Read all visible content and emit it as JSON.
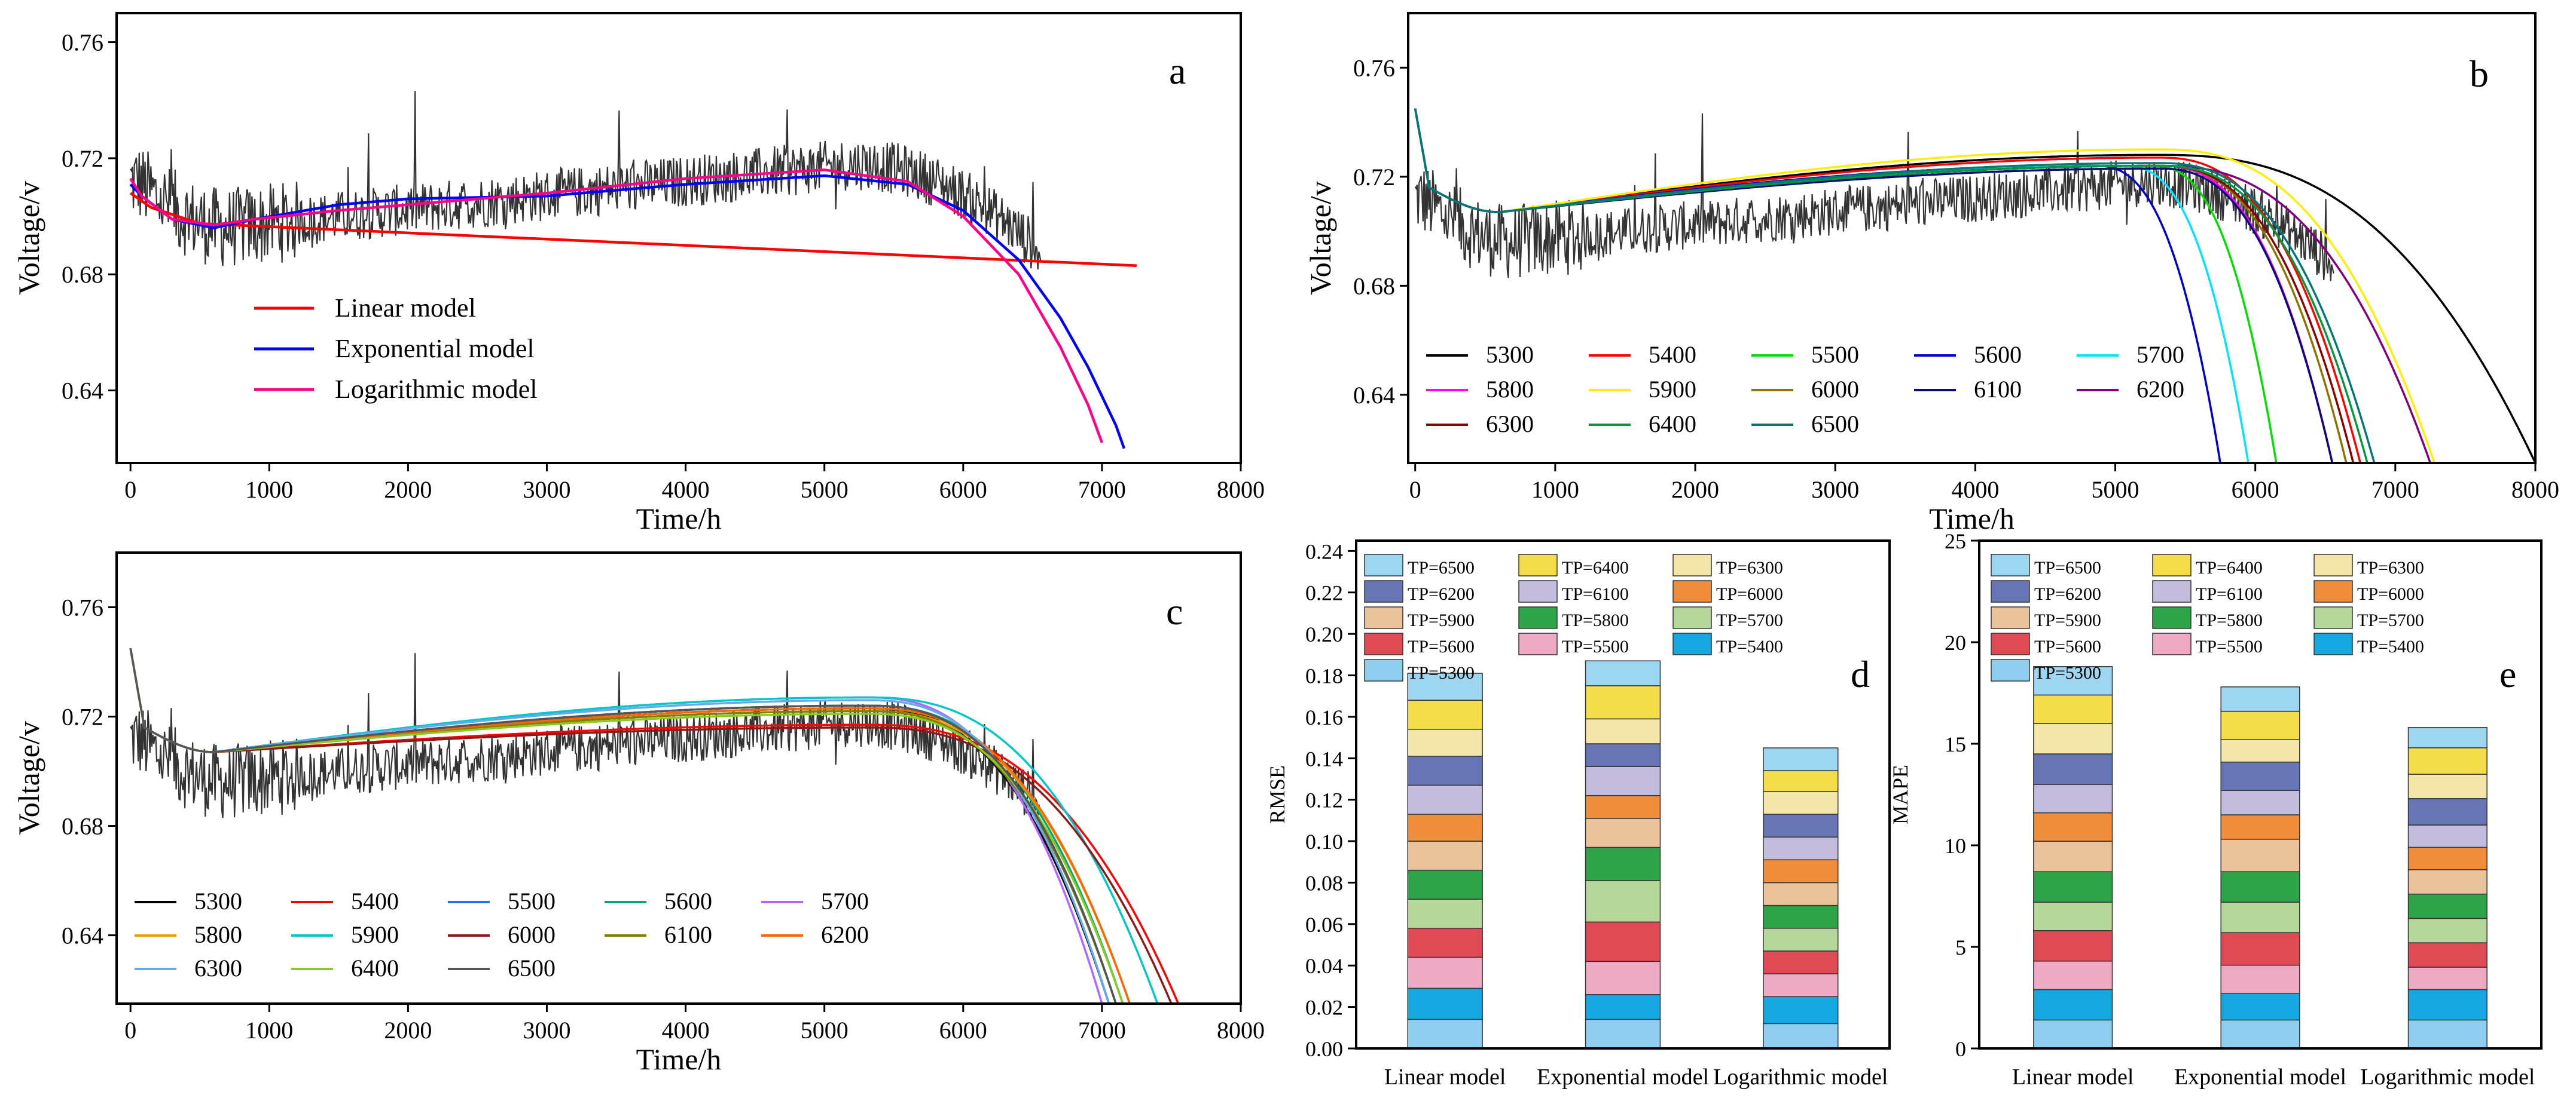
{
  "figure": {
    "series_labels": [
      "5300",
      "5400",
      "5500",
      "5600",
      "5700",
      "5800",
      "5900",
      "6000",
      "6100",
      "6200",
      "6300",
      "6400",
      "6500"
    ],
    "colors_b": [
      "#000000",
      "#ff0000",
      "#00e000",
      "#0000cc",
      "#00e5ff",
      "#ff00ff",
      "#ffee00",
      "#8b7500",
      "#0a0a78",
      "#800080",
      "#8b0000",
      "#009a3e",
      "#007878"
    ],
    "colors_c": [
      "#000000",
      "#ff0000",
      "#1f6fff",
      "#00a878",
      "#b266ff",
      "#e6a000",
      "#00c8c8",
      "#8b1a1a",
      "#808000",
      "#ff6600",
      "#66aaee",
      "#88cc22",
      "#555555"
    ],
    "bar_colors": {
      "TP=6500": "#9dd6f0",
      "TP=6400": "#f5dd4a",
      "TP=6300": "#f3e6a8",
      "TP=6200": "#6575b5",
      "TP=6100": "#c4bcdc",
      "TP=6000": "#f08d3a",
      "TP=5900": "#ebc39b",
      "TP=5800": "#2ea448",
      "TP=5700": "#b5d79a",
      "TP=5600": "#e04a55",
      "TP=5500": "#eea9c4",
      "TP=5400": "#15a8e0",
      "TP=5300": "#8ecff0"
    }
  },
  "chart_data": [
    {
      "panel": "a",
      "type": "line",
      "xlabel": "Time/h",
      "ylabel": "Voltage/v",
      "xlim": [
        -100,
        8000
      ],
      "ylim": [
        0.615,
        0.77
      ],
      "xticks": [
        "0",
        "1000",
        "2000",
        "3000",
        "4000",
        "5000",
        "6000",
        "7000",
        "8000"
      ],
      "yticks": [
        "0.64",
        "0.68",
        "0.72",
        "0.76"
      ],
      "series": [
        {
          "name": "Linear model",
          "color": "#ff0000",
          "x": [
            0,
            150,
            500,
            7250
          ],
          "y": [
            0.708,
            0.703,
            0.6975,
            0.683
          ]
        },
        {
          "name": "Exponential model",
          "color": "#0000ff",
          "x": [
            0,
            80,
            300,
            600,
            900,
            1500,
            2000,
            3000,
            4000,
            5000,
            5600,
            6000,
            6400,
            6700,
            6900,
            7100,
            7160
          ],
          "y": [
            0.711,
            0.707,
            0.699,
            0.696,
            0.699,
            0.704,
            0.706,
            0.707,
            0.711,
            0.714,
            0.711,
            0.702,
            0.685,
            0.665,
            0.648,
            0.628,
            0.62
          ]
        },
        {
          "name": "Logarithmic model",
          "color": "#ff0088",
          "x": [
            0,
            80,
            300,
            600,
            900,
            1500,
            2000,
            3000,
            4000,
            5000,
            5600,
            6000,
            6400,
            6700,
            6900,
            7000
          ],
          "y": [
            0.713,
            0.707,
            0.699,
            0.697,
            0.699,
            0.702,
            0.704,
            0.708,
            0.713,
            0.716,
            0.712,
            0.7,
            0.68,
            0.655,
            0.635,
            0.622
          ]
        }
      ],
      "legend": [
        "Linear model",
        "Exponential model",
        "Logarithmic model"
      ],
      "label": "a"
    },
    {
      "panel": "b",
      "type": "line",
      "xlabel": "Time/h",
      "ylabel": "Voltage/v",
      "xlim": [
        -50,
        8000
      ],
      "ylim": [
        0.615,
        0.78
      ],
      "xticks": [
        "0",
        "1000",
        "2000",
        "3000",
        "4000",
        "5000",
        "6000",
        "7000",
        "8000"
      ],
      "yticks": [
        "0.64",
        "0.68",
        "0.72",
        "0.76"
      ],
      "series": [
        {
          "name": "5300",
          "end_x": 8000,
          "peak": 0.728
        },
        {
          "name": "5400",
          "end_x": 6750,
          "peak": 0.727
        },
        {
          "name": "5500",
          "end_x": 6150,
          "peak": 0.724
        },
        {
          "name": "5600",
          "end_x": 5750,
          "peak": 0.724
        },
        {
          "name": "5700",
          "end_x": 5950,
          "peak": 0.724
        },
        {
          "name": "5800",
          "end_x": 6550,
          "peak": 0.724
        },
        {
          "name": "5900",
          "end_x": 7280,
          "peak": 0.73
        },
        {
          "name": "6000",
          "end_x": 6650,
          "peak": 0.724
        },
        {
          "name": "6100",
          "end_x": 6550,
          "peak": 0.723
        },
        {
          "name": "6200",
          "end_x": 7250,
          "peak": 0.724
        },
        {
          "name": "6300",
          "end_x": 6700,
          "peak": 0.724
        },
        {
          "name": "6400",
          "end_x": 6800,
          "peak": 0.724
        },
        {
          "name": "6500",
          "end_x": 6850,
          "peak": 0.725
        }
      ],
      "label": "b"
    },
    {
      "panel": "c",
      "type": "line",
      "xlabel": "Time/h",
      "ylabel": "Voltage/v",
      "xlim": [
        -100,
        8000
      ],
      "ylim": [
        0.615,
        0.78
      ],
      "xticks": [
        "0",
        "1000",
        "2000",
        "3000",
        "4000",
        "5000",
        "6000",
        "7000",
        "8000"
      ],
      "yticks": [
        "0.64",
        "0.68",
        "0.72",
        "0.76"
      ],
      "series": [
        {
          "name": "5300",
          "end_x": 7050,
          "peak": 0.723
        },
        {
          "name": "5400",
          "end_x": 7550,
          "peak": 0.717
        },
        {
          "name": "5500",
          "end_x": 7100,
          "peak": 0.724
        },
        {
          "name": "5600",
          "end_x": 7150,
          "peak": 0.724
        },
        {
          "name": "5700",
          "end_x": 7000,
          "peak": 0.727
        },
        {
          "name": "5800",
          "end_x": 7200,
          "peak": 0.722
        },
        {
          "name": "5900",
          "end_x": 7400,
          "peak": 0.727
        },
        {
          "name": "6000",
          "end_x": 7500,
          "peak": 0.716
        },
        {
          "name": "6100",
          "end_x": 7100,
          "peak": 0.722
        },
        {
          "name": "6200",
          "end_x": 7200,
          "peak": 0.723
        },
        {
          "name": "6300",
          "end_x": 7050,
          "peak": 0.726
        },
        {
          "name": "6400",
          "end_x": 7150,
          "peak": 0.721
        },
        {
          "name": "6500",
          "end_x": 7100,
          "peak": 0.724
        }
      ],
      "label": "c"
    },
    {
      "panel": "d",
      "type": "bar",
      "stacked": true,
      "ylabel": "RMSE",
      "ylim": [
        0,
        0.245
      ],
      "yticks": [
        "0.00",
        "0.02",
        "0.04",
        "0.06",
        "0.08",
        "0.10",
        "0.12",
        "0.14",
        "0.16",
        "0.18",
        "0.20",
        "0.22",
        "0.24"
      ],
      "categories": [
        "Linear model",
        "Exponential model",
        "Logarithmic model"
      ],
      "stack_order": [
        "TP=5300",
        "TP=5400",
        "TP=5500",
        "TP=5600",
        "TP=5700",
        "TP=5800",
        "TP=5900",
        "TP=6000",
        "TP=6100",
        "TP=6200",
        "TP=6300",
        "TP=6400",
        "TP=6500"
      ],
      "series": [
        {
          "name": "TP=5300",
          "values": [
            0.014,
            0.014,
            0.012
          ]
        },
        {
          "name": "TP=5400",
          "values": [
            0.015,
            0.012,
            0.013
          ]
        },
        {
          "name": "TP=5500",
          "values": [
            0.015,
            0.016,
            0.011
          ]
        },
        {
          "name": "TP=5600",
          "values": [
            0.014,
            0.019,
            0.011
          ]
        },
        {
          "name": "TP=5700",
          "values": [
            0.014,
            0.02,
            0.011
          ]
        },
        {
          "name": "TP=5800",
          "values": [
            0.014,
            0.016,
            0.011
          ]
        },
        {
          "name": "TP=5900",
          "values": [
            0.014,
            0.014,
            0.011
          ]
        },
        {
          "name": "TP=6000",
          "values": [
            0.013,
            0.011,
            0.011
          ]
        },
        {
          "name": "TP=6100",
          "values": [
            0.014,
            0.014,
            0.011
          ]
        },
        {
          "name": "TP=6200",
          "values": [
            0.014,
            0.011,
            0.011
          ]
        },
        {
          "name": "TP=6300",
          "values": [
            0.013,
            0.012,
            0.011
          ]
        },
        {
          "name": "TP=6400",
          "values": [
            0.014,
            0.016,
            0.01
          ]
        },
        {
          "name": "TP=6500",
          "values": [
            0.013,
            0.012,
            0.011
          ]
        }
      ],
      "legend": [
        "TP=6500",
        "TP=6400",
        "TP=6300",
        "TP=6200",
        "TP=6100",
        "TP=6000",
        "TP=5900",
        "TP=5800",
        "TP=5700",
        "TP=5600",
        "TP=5500",
        "TP=5400",
        "TP=5300"
      ],
      "label": "d"
    },
    {
      "panel": "e",
      "type": "bar",
      "stacked": true,
      "ylabel": "MAPE",
      "ylim": [
        0,
        25
      ],
      "yticks": [
        "0",
        "5",
        "10",
        "15",
        "20",
        "25"
      ],
      "categories": [
        "Linear model",
        "Exponential model",
        "Logarithmic model"
      ],
      "stack_order": [
        "TP=5300",
        "TP=5400",
        "TP=5500",
        "TP=5600",
        "TP=5700",
        "TP=5800",
        "TP=5900",
        "TP=6000",
        "TP=6100",
        "TP=6200",
        "TP=6300",
        "TP=6400",
        "TP=6500"
      ],
      "series": [
        {
          "name": "TP=5300",
          "values": [
            1.4,
            1.4,
            1.4
          ]
        },
        {
          "name": "TP=5400",
          "values": [
            1.5,
            1.3,
            1.5
          ]
        },
        {
          "name": "TP=5500",
          "values": [
            1.4,
            1.4,
            1.1
          ]
        },
        {
          "name": "TP=5600",
          "values": [
            1.5,
            1.6,
            1.2
          ]
        },
        {
          "name": "TP=5700",
          "values": [
            1.4,
            1.5,
            1.2
          ]
        },
        {
          "name": "TP=5800",
          "values": [
            1.5,
            1.5,
            1.2
          ]
        },
        {
          "name": "TP=5900",
          "values": [
            1.5,
            1.6,
            1.2
          ]
        },
        {
          "name": "TP=6000",
          "values": [
            1.4,
            1.2,
            1.1
          ]
        },
        {
          "name": "TP=6100",
          "values": [
            1.4,
            1.2,
            1.1
          ]
        },
        {
          "name": "TP=6200",
          "values": [
            1.5,
            1.4,
            1.3
          ]
        },
        {
          "name": "TP=6300",
          "values": [
            1.5,
            1.1,
            1.2
          ]
        },
        {
          "name": "TP=6400",
          "values": [
            1.4,
            1.4,
            1.3
          ]
        },
        {
          "name": "TP=6500",
          "values": [
            1.4,
            1.2,
            1.0
          ]
        }
      ],
      "legend": [
        "TP=6500",
        "TP=6400",
        "TP=6300",
        "TP=6200",
        "TP=6100",
        "TP=6000",
        "TP=5900",
        "TP=5800",
        "TP=5700",
        "TP=5600",
        "TP=5500",
        "TP=5400",
        "TP=5300"
      ],
      "label": "e"
    }
  ]
}
